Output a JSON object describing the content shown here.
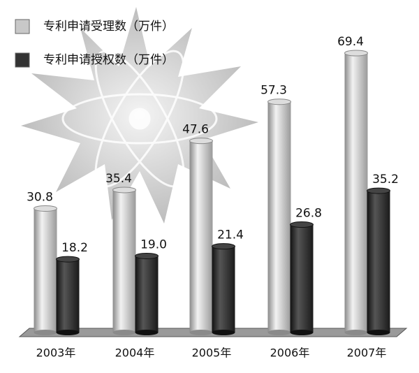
{
  "chart_data": {
    "type": "bar",
    "categories": [
      "2003年",
      "2004年",
      "2005年",
      "2006年",
      "2007年"
    ],
    "series": [
      {
        "name": "专利申请受理数（万件）",
        "color": "#c8c8c8",
        "values": [
          30.8,
          35.4,
          47.6,
          57.3,
          69.4
        ]
      },
      {
        "name": "专利申请授权数（万件）",
        "color": "#333333",
        "values": [
          18.2,
          19.0,
          21.4,
          26.8,
          35.2
        ],
        "value_labels": [
          "18.2",
          "19.0",
          "21.4",
          "26.8",
          "35.2"
        ]
      }
    ],
    "legend": "upper left"
  }
}
